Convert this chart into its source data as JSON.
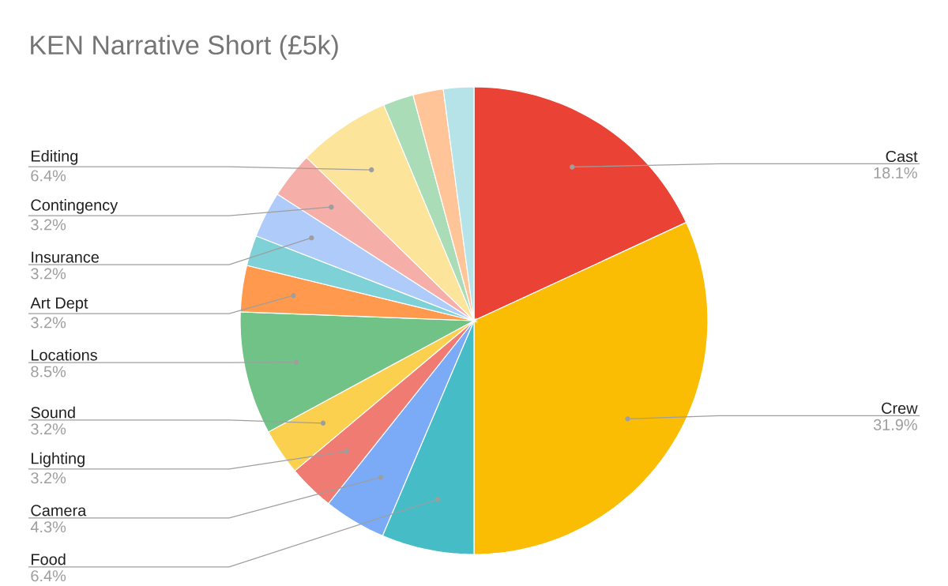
{
  "chart_data": {
    "type": "pie",
    "title": "KEN Narrative Short (£5k)",
    "categories": [
      "Cast",
      "Crew",
      "Food",
      "Camera",
      "Lighting",
      "Sound",
      "Locations",
      "Art Dept",
      null,
      "Insurance",
      "Contingency",
      "Editing",
      null,
      null,
      null
    ],
    "values": [
      18.1,
      31.9,
      6.4,
      4.3,
      3.2,
      3.2,
      8.5,
      3.2,
      2.1,
      3.2,
      3.2,
      6.4,
      2.1,
      2.1,
      2.1
    ],
    "value_labels": [
      "18.1%",
      "31.9%",
      "6.4%",
      "4.3%",
      "3.2%",
      "3.2%",
      "8.5%",
      "3.2%",
      null,
      "3.2%",
      "3.2%",
      "6.4%",
      null,
      null,
      null
    ],
    "colors": [
      "#ea4335",
      "#fbbc04",
      "#46bdc6",
      "#7baaf7",
      "#f07b72",
      "#fcd04f",
      "#71c287",
      "#ff994d",
      "#7ed1d7",
      "#afcbfa",
      "#f6aea9",
      "#fde49b",
      "#aadcb7",
      "#ffc599",
      "#b5e3e7"
    ]
  }
}
